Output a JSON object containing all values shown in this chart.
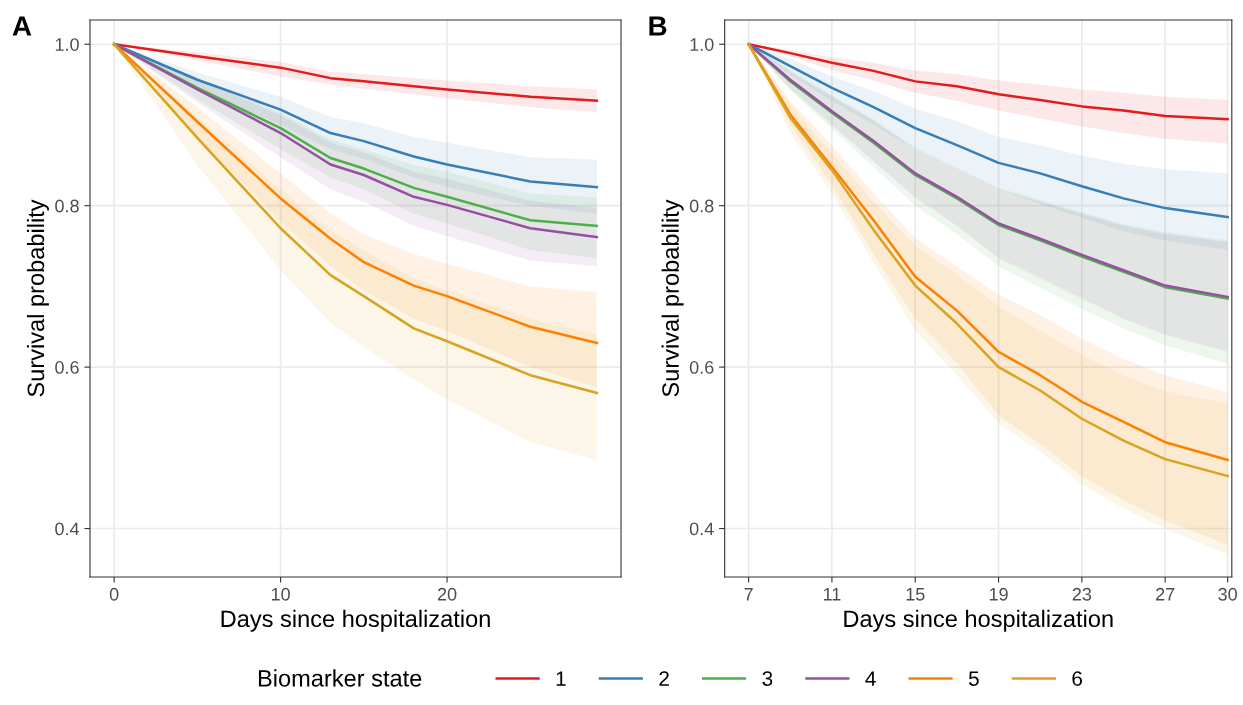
{
  "chart_data": [
    {
      "type": "line",
      "title": "A",
      "xlabel": "Days since hospitalization",
      "ylabel": "Survival probability",
      "legend_title": "Biomarker state",
      "legend": "bottom",
      "grid": true,
      "line_style": "solid",
      "xlim": [
        -1.45,
        30.45
      ],
      "ylim": [
        0.34,
        1.03
      ],
      "xticks": [
        0,
        10,
        20
      ],
      "yticks": [
        {
          "value": 0.4,
          "label": "0.4"
        },
        {
          "value": 0.6,
          "label": "0.6"
        },
        {
          "value": 0.8,
          "label": "0.8"
        },
        {
          "value": 1.0,
          "label": "1.0"
        }
      ],
      "x": [
        0,
        5,
        10,
        13,
        15,
        18,
        20,
        25,
        29
      ],
      "series": [
        {
          "name": "1",
          "color": "#e41a1c",
          "values": [
            1.0,
            0.985,
            0.971,
            0.958,
            0.954,
            0.948,
            0.944,
            0.935,
            0.93
          ],
          "lower": [
            1.0,
            0.98,
            0.96,
            0.95,
            0.945,
            0.938,
            0.933,
            0.922,
            0.916
          ],
          "upper": [
            1.0,
            0.99,
            0.978,
            0.966,
            0.963,
            0.958,
            0.955,
            0.948,
            0.944
          ]
        },
        {
          "name": "2",
          "color": "#377eb8",
          "values": [
            1.0,
            0.956,
            0.919,
            0.89,
            0.88,
            0.861,
            0.851,
            0.83,
            0.823
          ],
          "lower": [
            1.0,
            0.945,
            0.9,
            0.87,
            0.858,
            0.835,
            0.823,
            0.8,
            0.79
          ],
          "upper": [
            1.0,
            0.965,
            0.935,
            0.91,
            0.902,
            0.885,
            0.878,
            0.86,
            0.857
          ]
        },
        {
          "name": "3",
          "color": "#4daf4a",
          "values": [
            1.0,
            0.946,
            0.896,
            0.859,
            0.846,
            0.822,
            0.811,
            0.782,
            0.775
          ],
          "lower": [
            1.0,
            0.932,
            0.87,
            0.835,
            0.82,
            0.79,
            0.778,
            0.745,
            0.735
          ],
          "upper": [
            1.0,
            0.958,
            0.915,
            0.882,
            0.87,
            0.85,
            0.842,
            0.815,
            0.81
          ]
        },
        {
          "name": "4",
          "color": "#984ea3",
          "values": [
            1.0,
            0.944,
            0.89,
            0.851,
            0.838,
            0.811,
            0.801,
            0.772,
            0.761
          ],
          "lower": [
            1.0,
            0.928,
            0.86,
            0.82,
            0.805,
            0.775,
            0.762,
            0.732,
            0.725
          ],
          "upper": [
            1.0,
            0.958,
            0.912,
            0.878,
            0.866,
            0.842,
            0.833,
            0.806,
            0.797
          ]
        },
        {
          "name": "5",
          "color": "#ff7f00",
          "values": [
            1.0,
            0.904,
            0.809,
            0.759,
            0.73,
            0.701,
            0.688,
            0.65,
            0.63
          ],
          "lower": [
            1.0,
            0.885,
            0.78,
            0.725,
            0.695,
            0.66,
            0.645,
            0.6,
            0.575
          ],
          "upper": [
            1.0,
            0.922,
            0.84,
            0.79,
            0.765,
            0.74,
            0.728,
            0.7,
            0.693
          ]
        },
        {
          "name": "6",
          "color": "#d9a21f",
          "values": [
            1.0,
            0.884,
            0.772,
            0.714,
            0.688,
            0.648,
            0.632,
            0.59,
            0.568
          ],
          "lower": [
            1.0,
            0.85,
            0.72,
            0.655,
            0.625,
            0.585,
            0.56,
            0.507,
            0.485
          ],
          "upper": [
            1.0,
            0.91,
            0.82,
            0.77,
            0.745,
            0.71,
            0.695,
            0.66,
            0.64
          ]
        }
      ]
    },
    {
      "type": "line",
      "title": "B",
      "xlabel": "Days since hospitalization",
      "ylabel": "Survival probability",
      "grid": true,
      "line_style": "solid",
      "xlim": [
        5.85,
        30.2
      ],
      "ylim": [
        0.34,
        1.03
      ],
      "xticks": [
        7,
        11,
        15,
        19,
        23,
        27,
        30
      ],
      "yticks": [
        {
          "value": 0.4,
          "label": "0.4"
        },
        {
          "value": 0.6,
          "label": "0.6"
        },
        {
          "value": 0.8,
          "label": "0.8"
        },
        {
          "value": 1.0,
          "label": "1.0"
        }
      ],
      "x": [
        7,
        9,
        11,
        13,
        15,
        17,
        19,
        21,
        23,
        25,
        27,
        30
      ],
      "series": [
        {
          "name": "1",
          "color": "#e41a1c",
          "values": [
            1.0,
            0.989,
            0.977,
            0.967,
            0.954,
            0.948,
            0.938,
            0.931,
            0.923,
            0.918,
            0.911,
            0.907
          ],
          "lower": [
            1.0,
            0.985,
            0.968,
            0.955,
            0.94,
            0.93,
            0.918,
            0.908,
            0.898,
            0.89,
            0.883,
            0.877
          ],
          "upper": [
            1.0,
            0.993,
            0.984,
            0.977,
            0.967,
            0.963,
            0.955,
            0.95,
            0.944,
            0.94,
            0.935,
            0.931
          ]
        },
        {
          "name": "2",
          "color": "#377eb8",
          "values": [
            1.0,
            0.973,
            0.946,
            0.922,
            0.896,
            0.875,
            0.853,
            0.84,
            0.824,
            0.809,
            0.797,
            0.786
          ],
          "lower": [
            1.0,
            0.962,
            0.93,
            0.9,
            0.87,
            0.845,
            0.82,
            0.802,
            0.785,
            0.768,
            0.757,
            0.745
          ],
          "upper": [
            1.0,
            0.982,
            0.96,
            0.942,
            0.92,
            0.905,
            0.885,
            0.875,
            0.862,
            0.852,
            0.845,
            0.84
          ]
        },
        {
          "name": "3",
          "color": "#4daf4a",
          "values": [
            1.0,
            0.954,
            0.915,
            0.878,
            0.838,
            0.809,
            0.776,
            0.757,
            0.737,
            0.718,
            0.699,
            0.685
          ],
          "lower": [
            1.0,
            0.943,
            0.895,
            0.848,
            0.8,
            0.765,
            0.725,
            0.698,
            0.672,
            0.648,
            0.627,
            0.604
          ],
          "upper": [
            1.0,
            0.968,
            0.937,
            0.907,
            0.872,
            0.847,
            0.822,
            0.807,
            0.792,
            0.777,
            0.767,
            0.757
          ]
        },
        {
          "name": "4",
          "color": "#984ea3",
          "values": [
            1.0,
            0.956,
            0.917,
            0.88,
            0.84,
            0.811,
            0.778,
            0.759,
            0.739,
            0.72,
            0.701,
            0.687
          ],
          "lower": [
            1.0,
            0.945,
            0.9,
            0.855,
            0.81,
            0.775,
            0.735,
            0.71,
            0.685,
            0.66,
            0.64,
            0.619
          ],
          "upper": [
            1.0,
            0.966,
            0.935,
            0.905,
            0.87,
            0.845,
            0.82,
            0.805,
            0.79,
            0.775,
            0.765,
            0.755
          ]
        },
        {
          "name": "5",
          "color": "#ff7f00",
          "values": [
            1.0,
            0.913,
            0.848,
            0.782,
            0.712,
            0.67,
            0.619,
            0.59,
            0.557,
            0.532,
            0.507,
            0.485
          ],
          "lower": [
            1.0,
            0.9,
            0.825,
            0.74,
            0.66,
            0.605,
            0.54,
            0.505,
            0.465,
            0.435,
            0.41,
            0.38
          ],
          "upper": [
            1.0,
            0.93,
            0.875,
            0.815,
            0.76,
            0.725,
            0.69,
            0.665,
            0.635,
            0.61,
            0.59,
            0.569
          ]
        },
        {
          "name": "6",
          "color": "#d9a21f",
          "values": [
            1.0,
            0.909,
            0.844,
            0.77,
            0.701,
            0.654,
            0.6,
            0.571,
            0.536,
            0.509,
            0.486,
            0.465
          ],
          "lower": [
            1.0,
            0.89,
            0.815,
            0.73,
            0.645,
            0.59,
            0.53,
            0.495,
            0.455,
            0.425,
            0.4,
            0.368
          ],
          "upper": [
            1.0,
            0.925,
            0.865,
            0.805,
            0.75,
            0.715,
            0.675,
            0.645,
            0.615,
            0.59,
            0.57,
            0.555
          ]
        }
      ]
    }
  ]
}
